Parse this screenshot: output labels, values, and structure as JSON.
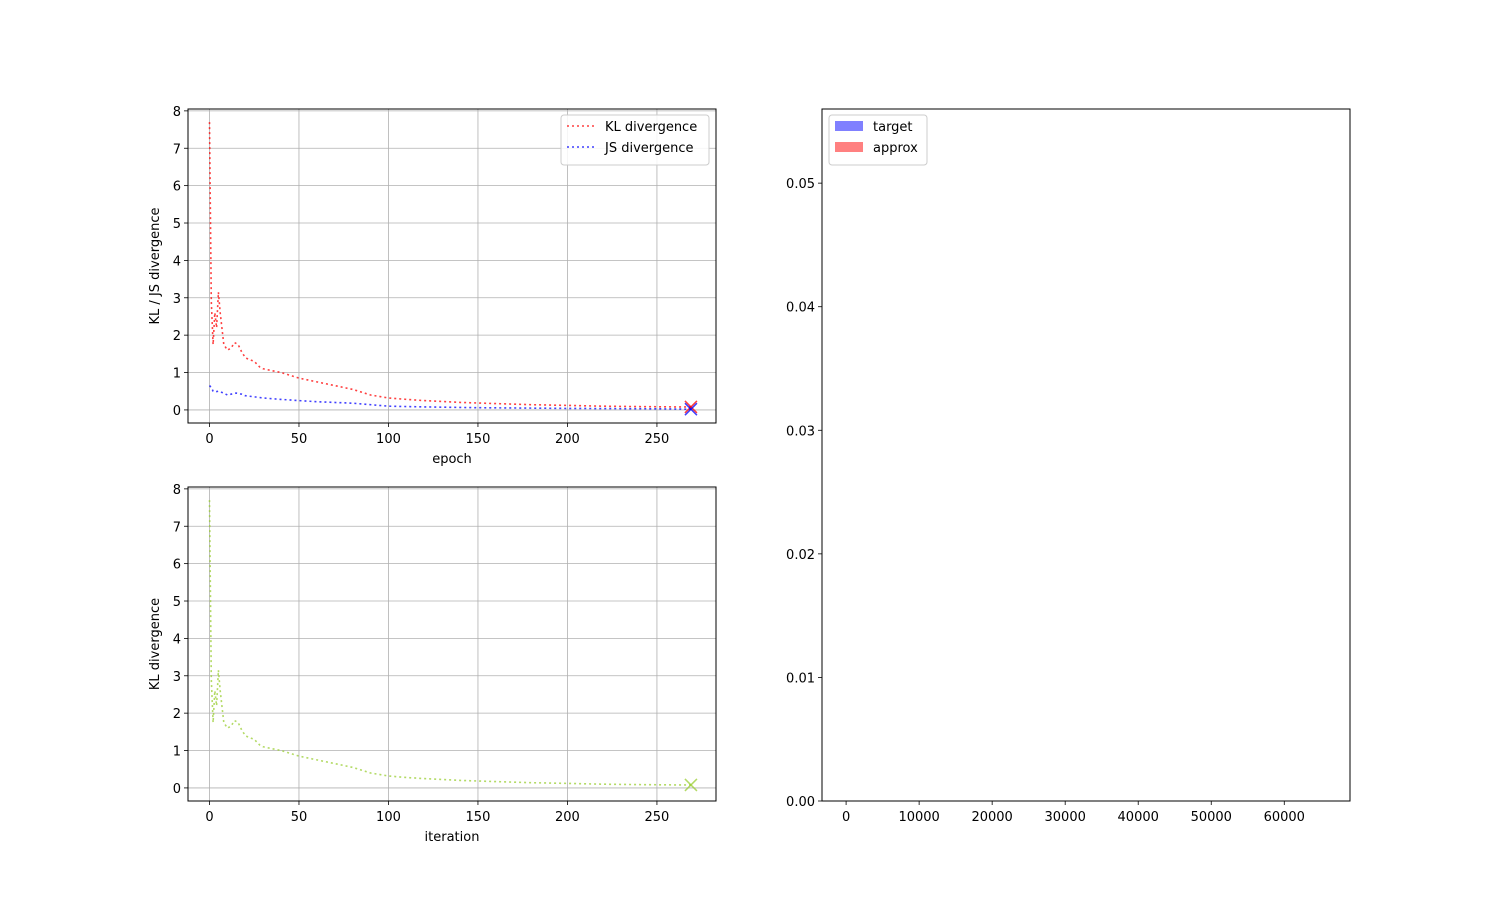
{
  "chart_data": [
    {
      "type": "line",
      "xlabel": "epoch",
      "ylabel": "KL / JS divergence",
      "xlim": [
        -12,
        283
      ],
      "ylim": [
        -0.35,
        8.05
      ],
      "xticks": [
        0,
        50,
        100,
        150,
        200,
        250
      ],
      "yticks": [
        0,
        1,
        2,
        3,
        4,
        5,
        6,
        7,
        8
      ],
      "grid": true,
      "legend": "top-right",
      "series": [
        {
          "name": "KL divergence",
          "color": "#ff0000",
          "style": "dotted",
          "x": [
            0,
            1,
            2,
            3,
            4,
            5,
            6,
            8,
            10,
            12,
            14,
            16,
            18,
            20,
            22,
            25,
            28,
            30,
            35,
            40,
            50,
            60,
            70,
            80,
            90,
            100,
            110,
            120,
            140,
            160,
            180,
            200,
            220,
            240,
            260,
            269
          ],
          "y": [
            7.7,
            2.9,
            1.75,
            2.6,
            2.2,
            3.15,
            2.6,
            1.75,
            1.6,
            1.65,
            1.8,
            1.75,
            1.55,
            1.4,
            1.35,
            1.3,
            1.15,
            1.1,
            1.05,
            1.0,
            0.85,
            0.75,
            0.65,
            0.55,
            0.4,
            0.32,
            0.28,
            0.25,
            0.2,
            0.17,
            0.14,
            0.12,
            0.1,
            0.09,
            0.08,
            0.08
          ],
          "end_marker": "x"
        },
        {
          "name": "JS divergence",
          "color": "#0000ff",
          "style": "dotted",
          "x": [
            0,
            1,
            2,
            3,
            5,
            8,
            10,
            12,
            15,
            18,
            20,
            25,
            30,
            40,
            50,
            60,
            80,
            100,
            120,
            150,
            200,
            250,
            269
          ],
          "y": [
            0.65,
            0.6,
            0.5,
            0.48,
            0.5,
            0.45,
            0.4,
            0.42,
            0.45,
            0.42,
            0.38,
            0.35,
            0.32,
            0.28,
            0.25,
            0.22,
            0.18,
            0.1,
            0.08,
            0.06,
            0.04,
            0.03,
            0.02
          ],
          "end_marker": "x"
        }
      ]
    },
    {
      "type": "line",
      "xlabel": "iteration",
      "ylabel": "KL divergence",
      "xlim": [
        -12,
        283
      ],
      "ylim": [
        -0.35,
        8.05
      ],
      "xticks": [
        0,
        50,
        100,
        150,
        200,
        250
      ],
      "yticks": [
        0,
        1,
        2,
        3,
        4,
        5,
        6,
        7,
        8
      ],
      "grid": true,
      "series": [
        {
          "color": "#9acd32",
          "style": "dotted",
          "x": [
            0,
            1,
            2,
            3,
            4,
            5,
            6,
            8,
            10,
            12,
            14,
            16,
            18,
            20,
            22,
            25,
            28,
            30,
            35,
            40,
            50,
            60,
            70,
            80,
            90,
            100,
            110,
            120,
            140,
            160,
            180,
            200,
            220,
            240,
            260,
            269
          ],
          "y": [
            7.7,
            2.9,
            1.75,
            2.6,
            2.2,
            3.15,
            2.6,
            1.75,
            1.6,
            1.65,
            1.8,
            1.75,
            1.55,
            1.4,
            1.35,
            1.3,
            1.15,
            1.1,
            1.05,
            1.0,
            0.85,
            0.75,
            0.65,
            0.55,
            0.4,
            0.32,
            0.28,
            0.25,
            0.2,
            0.17,
            0.14,
            0.12,
            0.1,
            0.09,
            0.08,
            0.08
          ],
          "end_marker": "x"
        }
      ]
    },
    {
      "type": "bar",
      "xlim": [
        -3300,
        69000
      ],
      "ylim": [
        0,
        0.056
      ],
      "xticks": [
        0,
        10000,
        20000,
        30000,
        40000,
        50000,
        60000
      ],
      "yticks": [
        "0.00",
        "0.01",
        "0.02",
        "0.03",
        "0.04",
        "0.05"
      ],
      "grid": false,
      "legend": "top-left",
      "series": [
        {
          "name": "target",
          "color": "#8080ff",
          "values": []
        },
        {
          "name": "approx",
          "color": "#ff8080",
          "values": []
        }
      ]
    }
  ]
}
